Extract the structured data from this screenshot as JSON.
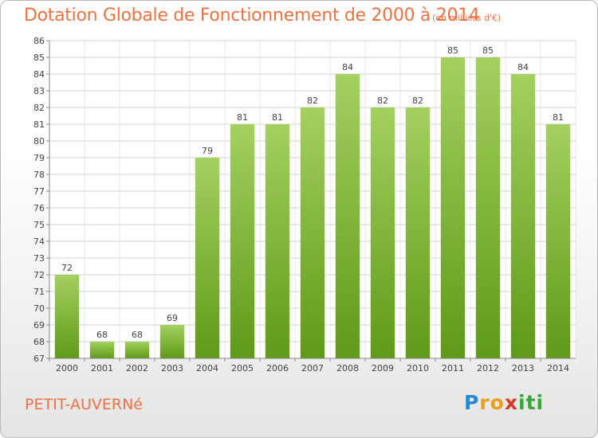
{
  "header": {
    "title": "Dotation Globale de Fonctionnement de 2000 à 2014",
    "unit": "(en milliers d'€)"
  },
  "footer": {
    "place": "PETIT-AUVERNé",
    "logo_letters": [
      "P",
      "r",
      "o",
      "x",
      "i",
      "t",
      "i"
    ]
  },
  "colors": {
    "title": "#f07040",
    "bar_light": "#a4d060",
    "bar_dark": "#5f9a18",
    "logo": [
      "#2a86d0",
      "#e8a01c",
      "#e8a01c",
      "#d83a2a",
      "#3aa53a",
      "#3aa53a",
      "#3aa53a"
    ]
  },
  "chart_data": {
    "type": "bar",
    "title": "Dotation Globale de Fonctionnement de 2000 à 2014",
    "subtitle": "(en milliers d'€)",
    "categories": [
      "2000",
      "2001",
      "2002",
      "2003",
      "2004",
      "2005",
      "2006",
      "2007",
      "2008",
      "2009",
      "2010",
      "2011",
      "2012",
      "2013",
      "2014"
    ],
    "values": [
      72,
      68,
      68,
      69,
      79,
      81,
      81,
      82,
      84,
      82,
      82,
      85,
      85,
      84,
      81
    ],
    "ylim": [
      67,
      86
    ],
    "yticks": [
      67,
      68,
      69,
      70,
      71,
      72,
      73,
      74,
      75,
      76,
      77,
      78,
      79,
      80,
      81,
      82,
      83,
      84,
      85,
      86
    ],
    "grid": true,
    "data_labels": true
  }
}
